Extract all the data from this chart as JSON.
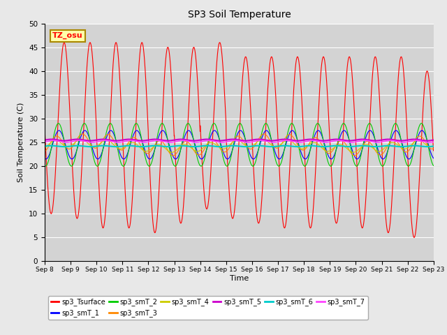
{
  "title": "SP3 Soil Temperature",
  "ylabel": "Soil Temperature (C)",
  "xlabel": "Time",
  "ylim": [
    0,
    50
  ],
  "background_color": "#e8e8e8",
  "plot_bg_color": "#d3d3d3",
  "tz_label": "TZ_osu",
  "x_tick_labels": [
    "Sep 8",
    "Sep 9",
    "Sep 10",
    "Sep 11",
    "Sep 12",
    "Sep 13",
    "Sep 14",
    "Sep 15",
    "Sep 16",
    "Sep 17",
    "Sep 18",
    "Sep 19",
    "Sep 20",
    "Sep 21",
    "Sep 22",
    "Sep 23"
  ],
  "series_colors": {
    "sp3_Tsurface": "#ff0000",
    "sp3_smT_1": "#0000ff",
    "sp3_smT_2": "#00cc00",
    "sp3_smT_3": "#ff8800",
    "sp3_smT_4": "#cccc00",
    "sp3_smT_5": "#cc00cc",
    "sp3_smT_6": "#00cccc",
    "sp3_smT_7": "#ff44ff"
  },
  "num_days": 15,
  "surface_peaks": [
    46,
    46,
    46,
    46,
    45,
    45,
    46,
    43,
    43,
    43,
    43,
    43,
    43,
    43,
    40
  ],
  "surface_troughs": [
    10,
    9,
    7,
    7,
    6,
    8,
    11,
    9,
    8,
    7,
    7,
    8,
    7,
    6,
    5
  ],
  "pts_per_day": 144
}
